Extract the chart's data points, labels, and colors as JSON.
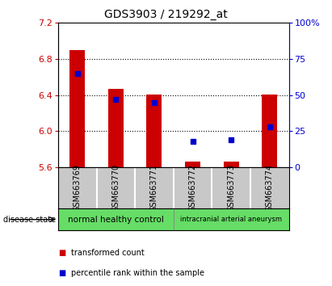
{
  "title": "GDS3903 / 219292_at",
  "samples": [
    "GSM663769",
    "GSM663770",
    "GSM663771",
    "GSM663772",
    "GSM663773",
    "GSM663774"
  ],
  "transformed_counts": [
    6.9,
    6.47,
    6.41,
    5.66,
    5.66,
    6.41
  ],
  "percentile_ranks": [
    65,
    47,
    45,
    18,
    19,
    28
  ],
  "ylim": [
    5.6,
    7.2
  ],
  "yticks": [
    5.6,
    6.0,
    6.4,
    6.8,
    7.2
  ],
  "y2lim": [
    0,
    100
  ],
  "y2ticks": [
    0,
    25,
    50,
    75,
    100
  ],
  "bar_bottom": 5.6,
  "bar_color": "#cc0000",
  "dot_color": "#0000cc",
  "bar_width": 0.4,
  "title_fontsize": 10,
  "disease_groups": [
    {
      "label": "normal healthy control",
      "samples": [
        0,
        1,
        2
      ],
      "color": "#66dd66"
    },
    {
      "label": "intracranial arterial aneurysm",
      "samples": [
        3,
        4,
        5
      ],
      "color": "#66dd66"
    }
  ],
  "disease_state_label": "disease state",
  "legend_items": [
    {
      "color": "#cc0000",
      "label": "transformed count"
    },
    {
      "color": "#0000cc",
      "label": "percentile rank within the sample"
    }
  ],
  "left_axis_color": "#cc0000",
  "right_axis_color": "#0000cc",
  "xtick_bg": "#c8c8c8",
  "xtick_separator_color": "#ffffff",
  "grid_yticks": [
    6.0,
    6.4,
    6.8
  ]
}
